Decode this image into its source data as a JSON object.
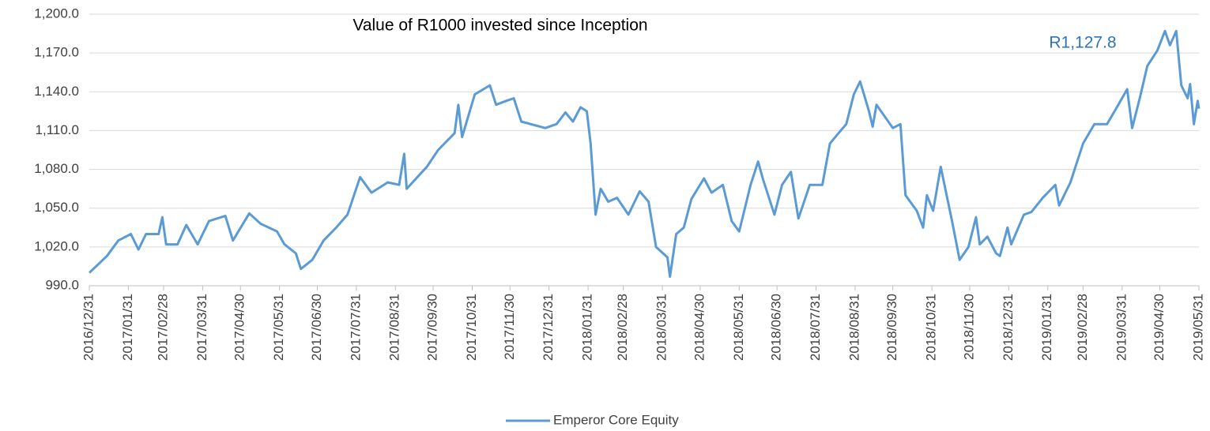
{
  "chart_data": {
    "type": "line",
    "title": "Value of R1000 invested since Inception",
    "annotation": "R1,127.8",
    "x": [
      "2016/12/31",
      "2017/01/14",
      "2017/01/23",
      "2017/02/02",
      "2017/02/08",
      "2017/02/14",
      "2017/02/24",
      "2017/02/27",
      "2017/03/02",
      "2017/03/11",
      "2017/03/18",
      "2017/03/27",
      "2017/04/05",
      "2017/04/18",
      "2017/04/24",
      "2017/05/07",
      "2017/05/16",
      "2017/05/29",
      "2017/06/04",
      "2017/06/13",
      "2017/06/17",
      "2017/06/26",
      "2017/07/05",
      "2017/07/15",
      "2017/07/24",
      "2017/08/03",
      "2017/08/12",
      "2017/08/25",
      "2017/09/03",
      "2017/09/07",
      "2017/09/09",
      "2017/09/25",
      "2017/10/04",
      "2017/10/17",
      "2017/10/20",
      "2017/10/23",
      "2017/11/02",
      "2017/11/14",
      "2017/11/19",
      "2017/11/27",
      "2017/12/03",
      "2017/12/09",
      "2017/12/28",
      "2018/01/06",
      "2018/01/13",
      "2018/01/19",
      "2018/01/25",
      "2018/01/30",
      "2018/02/02",
      "2018/02/06",
      "2018/02/10",
      "2018/02/16",
      "2018/02/23",
      "2018/03/04",
      "2018/03/13",
      "2018/03/20",
      "2018/03/26",
      "2018/04/04",
      "2018/04/06",
      "2018/04/11",
      "2018/04/17",
      "2018/04/23",
      "2018/05/03",
      "2018/05/09",
      "2018/05/18",
      "2018/05/25",
      "2018/05/31",
      "2018/06/09",
      "2018/06/15",
      "2018/06/19",
      "2018/06/28",
      "2018/07/04",
      "2018/07/11",
      "2018/07/17",
      "2018/07/26",
      "2018/08/05",
      "2018/08/11",
      "2018/08/17",
      "2018/08/24",
      "2018/08/30",
      "2018/09/04",
      "2018/09/11",
      "2018/09/14",
      "2018/09/17",
      "2018/09/30",
      "2018/10/06",
      "2018/10/10",
      "2018/10/19",
      "2018/10/24",
      "2018/10/27",
      "2018/11/01",
      "2018/11/07",
      "2018/11/16",
      "2018/11/22",
      "2018/11/29",
      "2018/12/05",
      "2018/12/08",
      "2018/12/14",
      "2018/12/21",
      "2018/12/24",
      "2018/12/30",
      "2019/01/02",
      "2019/01/12",
      "2019/01/18",
      "2019/01/27",
      "2019/02/06",
      "2019/02/09",
      "2019/02/18",
      "2019/02/28",
      "2019/03/09",
      "2019/03/19",
      "2019/03/28",
      "2019/04/04",
      "2019/04/08",
      "2019/04/14",
      "2019/04/20",
      "2019/04/28",
      "2019/05/04",
      "2019/05/08",
      "2019/05/13",
      "2019/05/17",
      "2019/05/22",
      "2019/05/24",
      "2019/05/27",
      "2019/05/30",
      "2019/05/31"
    ],
    "series": [
      {
        "name": "Emperor Core Equity",
        "color": "#5b9bd5",
        "values": [
          1000,
          1013,
          1025,
          1030,
          1018,
          1030,
          1030,
          1043,
          1022,
          1022,
          1037,
          1022,
          1040,
          1044,
          1025,
          1046,
          1038,
          1032,
          1022,
          1015,
          1003,
          1010,
          1025,
          1035,
          1045,
          1074,
          1062,
          1070,
          1068,
          1092,
          1065,
          1082,
          1095,
          1108,
          1130,
          1105,
          1138,
          1145,
          1130,
          1133,
          1135,
          1117,
          1112,
          1115,
          1124,
          1117,
          1128,
          1125,
          1100,
          1045,
          1065,
          1055,
          1058,
          1045,
          1063,
          1055,
          1020,
          1012,
          997,
          1030,
          1035,
          1057,
          1073,
          1062,
          1068,
          1040,
          1032,
          1068,
          1086,
          1072,
          1045,
          1068,
          1078,
          1042,
          1068,
          1068,
          1100,
          1107,
          1115,
          1138,
          1148,
          1125,
          1113,
          1130,
          1112,
          1115,
          1060,
          1048,
          1035,
          1060,
          1048,
          1082,
          1040,
          1010,
          1020,
          1043,
          1022,
          1028,
          1015,
          1013,
          1035,
          1022,
          1045,
          1047,
          1058,
          1068,
          1052,
          1070,
          1100,
          1115,
          1115,
          1130,
          1142,
          1112,
          1135,
          1160,
          1172,
          1187,
          1176,
          1187,
          1145,
          1135,
          1146,
          1115,
          1133,
          1127
        ]
      }
    ],
    "xlim": [
      "2016/12/31",
      "2019/05/31"
    ],
    "xticks": [
      "2016/12/31",
      "2017/01/31",
      "2017/02/28",
      "2017/03/31",
      "2017/04/30",
      "2017/05/31",
      "2017/06/30",
      "2017/07/31",
      "2017/08/31",
      "2017/09/30",
      "2017/10/31",
      "2017/11/30",
      "2017/12/31",
      "2018/01/31",
      "2018/02/28",
      "2018/03/31",
      "2018/04/30",
      "2018/05/31",
      "2018/06/30",
      "2018/07/31",
      "2018/08/31",
      "2018/09/30",
      "2018/10/31",
      "2018/11/30",
      "2018/12/31",
      "2019/01/31",
      "2019/02/28",
      "2019/03/31",
      "2019/04/30",
      "2019/05/31"
    ],
    "ylim": [
      990,
      1200
    ],
    "yticks": [
      {
        "value": 990,
        "label": "990.0"
      },
      {
        "value": 1020,
        "label": "1,020.0"
      },
      {
        "value": 1050,
        "label": "1,050.0"
      },
      {
        "value": 1080,
        "label": "1,080.0"
      },
      {
        "value": 1110,
        "label": "1,110.0"
      },
      {
        "value": 1140,
        "label": "1,140.0"
      },
      {
        "value": 1170,
        "label": "1,170.0"
      },
      {
        "value": 1200,
        "label": "1,200.0"
      }
    ],
    "grid": true,
    "legend": "bottom"
  }
}
